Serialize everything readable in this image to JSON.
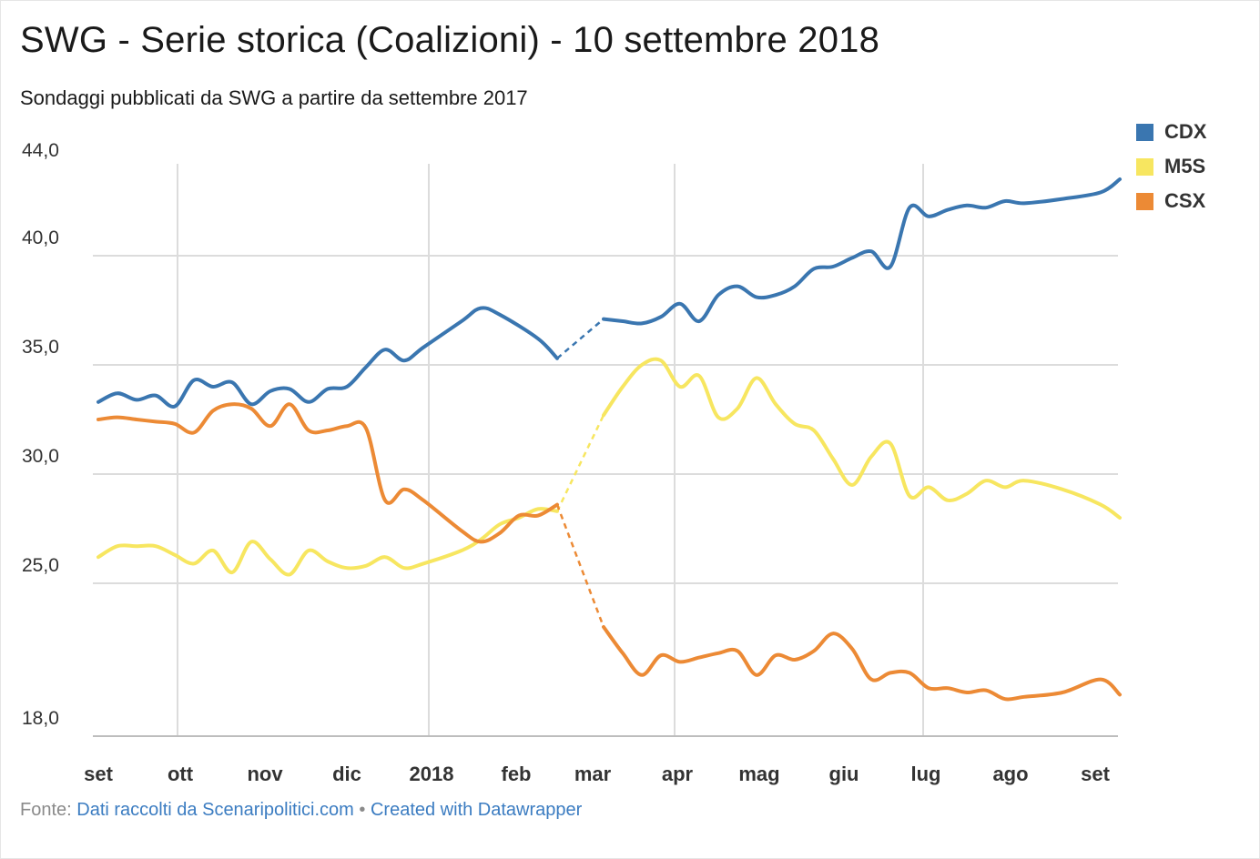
{
  "title": "SWG - Serie storica (Coalizioni) - 10 settembre 2018",
  "subtitle": "Sondaggi pubblicati da SWG a partire da settembre 2017",
  "footer": {
    "source_label": "Fonte:",
    "source_text": "Dati raccolti da Scenaripolitici.com",
    "separator": "•",
    "credit_text": "Created with Datawrapper"
  },
  "chart_data": {
    "type": "line",
    "title": "SWG - Serie storica (Coalizioni) - 10 settembre 2018",
    "subtitle": "Sondaggi pubblicati da SWG a partire da settembre 2017",
    "xlabel": "",
    "ylabel": "",
    "x_ticks": [
      "set",
      "ott",
      "nov",
      "dic",
      "2018",
      "feb",
      "mar",
      "apr",
      "mag",
      "giu",
      "lug",
      "ago",
      "set"
    ],
    "y_ticks": [
      "18,0",
      "25,0",
      "30,0",
      "35,0",
      "40,0",
      "44,0"
    ],
    "ylim": [
      18,
      44
    ],
    "grid": true,
    "legend_position": "top-right",
    "note": "Dashed segments connect late February 2018 to early March 2018",
    "series": [
      {
        "name": "CDX",
        "color": "#3a76b0",
        "points": [
          [
            "2017-09-01",
            33.3
          ],
          [
            "2017-09-08",
            33.7
          ],
          [
            "2017-09-15",
            33.4
          ],
          [
            "2017-09-22",
            33.6
          ],
          [
            "2017-09-29",
            33.1
          ],
          [
            "2017-10-06",
            34.3
          ],
          [
            "2017-10-13",
            34.0
          ],
          [
            "2017-10-20",
            34.2
          ],
          [
            "2017-10-27",
            33.2
          ],
          [
            "2017-11-03",
            33.8
          ],
          [
            "2017-11-10",
            33.9
          ],
          [
            "2017-11-17",
            33.3
          ],
          [
            "2017-11-24",
            33.9
          ],
          [
            "2017-12-01",
            34.0
          ],
          [
            "2017-12-08",
            34.9
          ],
          [
            "2017-12-15",
            35.7
          ],
          [
            "2017-12-22",
            35.2
          ],
          [
            "2017-12-29",
            35.8
          ],
          [
            "2018-01-12",
            37.0
          ],
          [
            "2018-01-19",
            37.6
          ],
          [
            "2018-01-26",
            37.3
          ],
          [
            "2018-02-09",
            36.2
          ],
          [
            "2018-02-16",
            35.3
          ],
          [
            "2018-03-05",
            37.1
          ],
          [
            "2018-03-12",
            37.0
          ],
          [
            "2018-03-19",
            36.9
          ],
          [
            "2018-03-26",
            37.2
          ],
          [
            "2018-04-02",
            37.8
          ],
          [
            "2018-04-09",
            37.0
          ],
          [
            "2018-04-16",
            38.2
          ],
          [
            "2018-04-23",
            38.6
          ],
          [
            "2018-04-30",
            38.1
          ],
          [
            "2018-05-07",
            38.2
          ],
          [
            "2018-05-14",
            38.6
          ],
          [
            "2018-05-21",
            39.4
          ],
          [
            "2018-05-28",
            39.5
          ],
          [
            "2018-06-04",
            39.9
          ],
          [
            "2018-06-11",
            40.2
          ],
          [
            "2018-06-18",
            39.5
          ],
          [
            "2018-06-25",
            42.2
          ],
          [
            "2018-07-02",
            41.8
          ],
          [
            "2018-07-09",
            42.1
          ],
          [
            "2018-07-16",
            42.3
          ],
          [
            "2018-07-23",
            42.2
          ],
          [
            "2018-07-30",
            42.5
          ],
          [
            "2018-08-06",
            42.4
          ],
          [
            "2018-08-20",
            42.6
          ],
          [
            "2018-09-03",
            42.9
          ],
          [
            "2018-09-10",
            43.5
          ]
        ]
      },
      {
        "name": "M5S",
        "color": "#f7e660",
        "points": [
          [
            "2017-09-01",
            26.2
          ],
          [
            "2017-09-08",
            26.7
          ],
          [
            "2017-09-15",
            26.7
          ],
          [
            "2017-09-22",
            26.7
          ],
          [
            "2017-09-29",
            26.3
          ],
          [
            "2017-10-06",
            25.9
          ],
          [
            "2017-10-13",
            26.5
          ],
          [
            "2017-10-20",
            25.5
          ],
          [
            "2017-10-27",
            26.9
          ],
          [
            "2017-11-03",
            26.1
          ],
          [
            "2017-11-10",
            25.4
          ],
          [
            "2017-11-17",
            26.5
          ],
          [
            "2017-11-24",
            26.0
          ],
          [
            "2017-12-01",
            25.7
          ],
          [
            "2017-12-08",
            25.8
          ],
          [
            "2017-12-15",
            26.2
          ],
          [
            "2017-12-22",
            25.7
          ],
          [
            "2017-12-29",
            25.9
          ],
          [
            "2018-01-12",
            26.5
          ],
          [
            "2018-01-19",
            27.0
          ],
          [
            "2018-01-26",
            27.7
          ],
          [
            "2018-02-02",
            28.0
          ],
          [
            "2018-02-09",
            28.4
          ],
          [
            "2018-02-16",
            28.3
          ],
          [
            "2018-03-05",
            32.7
          ],
          [
            "2018-03-12",
            34.0
          ],
          [
            "2018-03-19",
            35.0
          ],
          [
            "2018-03-26",
            35.2
          ],
          [
            "2018-04-02",
            34.0
          ],
          [
            "2018-04-09",
            34.5
          ],
          [
            "2018-04-16",
            32.6
          ],
          [
            "2018-04-23",
            33.0
          ],
          [
            "2018-04-30",
            34.4
          ],
          [
            "2018-05-07",
            33.2
          ],
          [
            "2018-05-14",
            32.3
          ],
          [
            "2018-05-21",
            32.0
          ],
          [
            "2018-05-28",
            30.7
          ],
          [
            "2018-06-04",
            29.5
          ],
          [
            "2018-06-11",
            30.8
          ],
          [
            "2018-06-18",
            31.4
          ],
          [
            "2018-06-25",
            29.0
          ],
          [
            "2018-07-02",
            29.4
          ],
          [
            "2018-07-09",
            28.8
          ],
          [
            "2018-07-16",
            29.1
          ],
          [
            "2018-07-23",
            29.7
          ],
          [
            "2018-07-30",
            29.4
          ],
          [
            "2018-08-06",
            29.7
          ],
          [
            "2018-08-20",
            29.3
          ],
          [
            "2018-09-03",
            28.6
          ],
          [
            "2018-09-10",
            28.0
          ]
        ]
      },
      {
        "name": "CSX",
        "color": "#ec8a35",
        "points": [
          [
            "2017-09-01",
            32.5
          ],
          [
            "2017-09-08",
            32.6
          ],
          [
            "2017-09-15",
            32.5
          ],
          [
            "2017-09-22",
            32.4
          ],
          [
            "2017-09-29",
            32.3
          ],
          [
            "2017-10-06",
            31.9
          ],
          [
            "2017-10-13",
            32.9
          ],
          [
            "2017-10-20",
            33.2
          ],
          [
            "2017-10-27",
            33.0
          ],
          [
            "2017-11-03",
            32.2
          ],
          [
            "2017-11-10",
            33.2
          ],
          [
            "2017-11-17",
            32.0
          ],
          [
            "2017-11-24",
            32.0
          ],
          [
            "2017-12-01",
            32.2
          ],
          [
            "2017-12-08",
            32.1
          ],
          [
            "2017-12-15",
            28.8
          ],
          [
            "2017-12-22",
            29.3
          ],
          [
            "2017-12-29",
            28.8
          ],
          [
            "2018-01-12",
            27.4
          ],
          [
            "2018-01-19",
            26.9
          ],
          [
            "2018-01-26",
            27.3
          ],
          [
            "2018-02-02",
            28.1
          ],
          [
            "2018-02-09",
            28.1
          ],
          [
            "2018-02-16",
            28.6
          ],
          [
            "2018-03-05",
            23.0
          ],
          [
            "2018-03-12",
            21.8
          ],
          [
            "2018-03-19",
            20.8
          ],
          [
            "2018-03-26",
            21.7
          ],
          [
            "2018-04-02",
            21.4
          ],
          [
            "2018-04-09",
            21.6
          ],
          [
            "2018-04-16",
            21.8
          ],
          [
            "2018-04-23",
            21.9
          ],
          [
            "2018-04-30",
            20.8
          ],
          [
            "2018-05-07",
            21.7
          ],
          [
            "2018-05-14",
            21.5
          ],
          [
            "2018-05-21",
            21.9
          ],
          [
            "2018-05-28",
            22.7
          ],
          [
            "2018-06-04",
            22.0
          ],
          [
            "2018-06-11",
            20.6
          ],
          [
            "2018-06-18",
            20.9
          ],
          [
            "2018-06-25",
            20.9
          ],
          [
            "2018-07-02",
            20.2
          ],
          [
            "2018-07-09",
            20.2
          ],
          [
            "2018-07-16",
            20.0
          ],
          [
            "2018-07-23",
            20.1
          ],
          [
            "2018-07-30",
            19.7
          ],
          [
            "2018-08-06",
            19.8
          ],
          [
            "2018-08-20",
            20.0
          ],
          [
            "2018-09-03",
            20.6
          ],
          [
            "2018-09-10",
            19.9
          ]
        ]
      }
    ]
  }
}
